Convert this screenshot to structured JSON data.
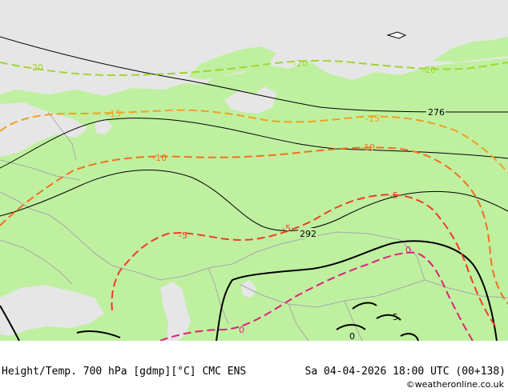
{
  "footer": {
    "title": "Height/Temp. 700 hPa [gdmp][°C] CMC ENS",
    "datetime": "Sa 04-04-2026 18:00 UTC (00+138)",
    "credit": "©weatheronline.co.uk"
  },
  "map": {
    "colors": {
      "land": "#bff0a0",
      "sea": "#e6e6e6",
      "border": "#a8a8a8",
      "height_contour": "#000000",
      "temp_minus20": "#a0d630",
      "temp_minus15": "#f0a020",
      "temp_minus10": "#f07020",
      "temp_minus5": "#f03c28",
      "temp_zero": "#e0207a"
    },
    "height_labels": [
      "276",
      "292"
    ],
    "temp_labels": {
      "minus20": "-20",
      "minus15": "-15",
      "minus10": "-10",
      "minus5": "-5",
      "zero": "0",
      "plus5": "5"
    }
  }
}
